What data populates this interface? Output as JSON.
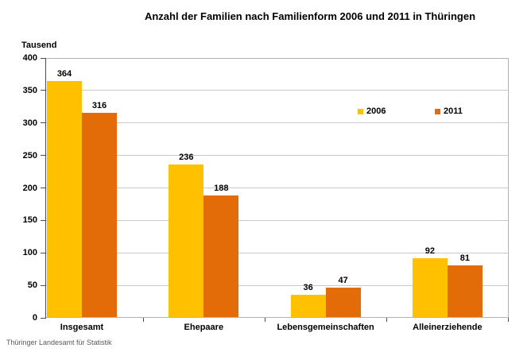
{
  "chart_data": {
    "type": "bar",
    "title": "Anzahl der Familien nach Familienform 2006 und 2011 in Thüringen",
    "ylabel": "Tausend",
    "xlabel": "",
    "categories": [
      "Insgesamt",
      "Ehepaare",
      "Lebensgemeinschaften",
      "Alleinerziehende"
    ],
    "series": [
      {
        "name": "2006",
        "color": "#FFC000",
        "values": [
          364,
          236,
          36,
          92
        ]
      },
      {
        "name": "2011",
        "color": "#E36C09",
        "values": [
          316,
          188,
          47,
          81
        ]
      }
    ],
    "ylim": [
      0,
      400
    ],
    "ytick_step": 50,
    "grid": "horizontal",
    "legend_position": "inside-top-right",
    "value_labels": true
  },
  "footer": {
    "source": "Thüringer Landesamt für Statistik"
  }
}
